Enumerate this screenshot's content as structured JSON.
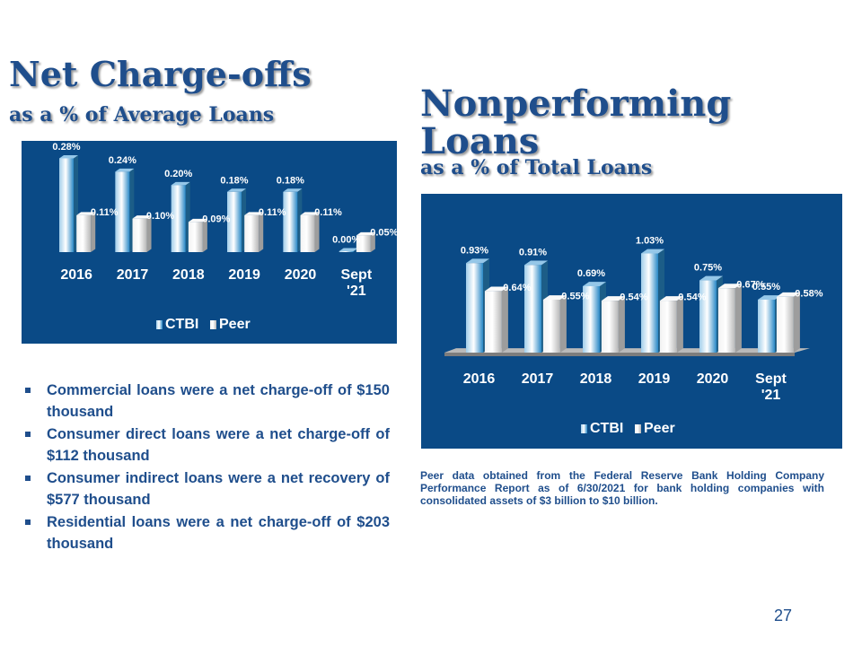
{
  "slide": {
    "nco_title": "Net Charge-offs",
    "nco_subtitle": "as a % of Average Loans",
    "np_title_line1": "Nonperforming",
    "np_title_line2": "Loans",
    "np_subtitle": "as a % of Total Loans",
    "bullets": [
      "Commercial loans were a net charge-off of $150 thousand",
      "Consumer direct loans were a net charge-off of $112 thousand",
      "Consumer indirect loans were a net recovery of $577 thousand",
      "Residential loans were a net charge-off of $203 thousand"
    ],
    "footnote": "Peer data obtained from the Federal Reserve Bank Holding Company Performance Report as of 6/30/2021 for bank holding companies with consolidated assets of $3 billion to $10 billion.",
    "page_number": "27"
  },
  "chart_data": [
    {
      "type": "bar",
      "title": "Net Charge-offs as a % of Average Loans",
      "categories": [
        [
          "2016"
        ],
        [
          "2017"
        ],
        [
          "2018"
        ],
        [
          "2019"
        ],
        [
          "2020"
        ],
        [
          "Sept",
          "'21"
        ]
      ],
      "series": [
        {
          "name": "CTBI",
          "values": [
            0.28,
            0.24,
            0.2,
            0.18,
            0.18,
            0.0
          ],
          "labels": [
            "0.28%",
            "0.24%",
            "0.20%",
            "0.18%",
            "0.18%",
            "0.00%"
          ]
        },
        {
          "name": "Peer",
          "values": [
            0.11,
            0.1,
            0.09,
            0.11,
            0.11,
            0.05
          ],
          "labels": [
            "0.11%",
            "0.10%",
            "0.09%",
            "0.11%",
            "0.11%",
            "0.05%"
          ]
        }
      ],
      "ylim": [
        0,
        0.3
      ],
      "grid": false,
      "legend": "bottom",
      "colors": {
        "background": "#0a4a86",
        "ctbi": "#2b8fd0",
        "peer": "#f2f2f2"
      }
    },
    {
      "type": "bar",
      "title": "Nonperforming Loans as a % of Total Loans",
      "categories": [
        [
          "2016"
        ],
        [
          "2017"
        ],
        [
          "2018"
        ],
        [
          "2019"
        ],
        [
          "2020"
        ],
        [
          "Sept",
          "'21"
        ]
      ],
      "series": [
        {
          "name": "CTBI",
          "values": [
            0.93,
            0.91,
            0.69,
            1.03,
            0.75,
            0.55
          ],
          "labels": [
            "0.93%",
            "0.91%",
            "0.69%",
            "1.03%",
            "0.75%",
            "0.55%"
          ]
        },
        {
          "name": "Peer",
          "values": [
            0.64,
            0.55,
            0.54,
            0.54,
            0.67,
            0.58
          ],
          "labels": [
            "0.64%",
            "0.55%",
            "0.54%",
            "0.54%",
            "0.67%",
            "0.58%"
          ]
        }
      ],
      "ylim": [
        0,
        1.1
      ],
      "grid": false,
      "legend": "bottom",
      "colors": {
        "background": "#0a4a86",
        "ctbi": "#2b8fd0",
        "peer": "#f2f2f2"
      }
    }
  ]
}
